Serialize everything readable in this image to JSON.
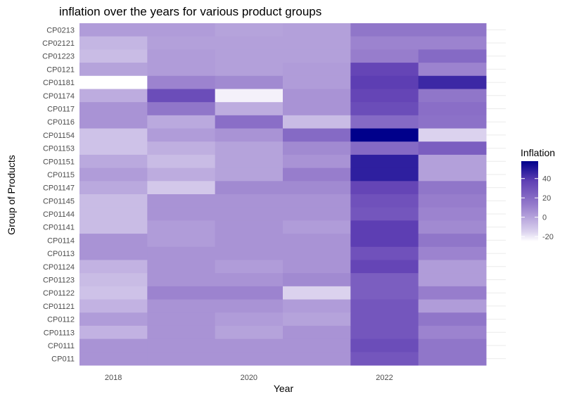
{
  "chart_data": {
    "type": "heatmap",
    "title": "inflation over the years for various product groups",
    "xlabel": "Year",
    "ylabel": "Group of Products",
    "x": [
      2018,
      2019,
      2020,
      2021,
      2022,
      2023
    ],
    "x_tick_labels": [
      "2018",
      "2020",
      "2022"
    ],
    "x_tick_values": [
      2018,
      2020,
      2022
    ],
    "y": [
      "CP0213",
      "CP02121",
      "CP01223",
      "CP0121",
      "CP01181",
      "CP01174",
      "CP0117",
      "CP0116",
      "CP01154",
      "CP01153",
      "CP01151",
      "CP0115",
      "CP01147",
      "CP01145",
      "CP01144",
      "CP01141",
      "CP0114",
      "CP0113",
      "CP01124",
      "CP01123",
      "CP01122",
      "CP01121",
      "CP0112",
      "CP01113",
      "CP0111",
      "CP011"
    ],
    "values": [
      [
        2,
        2,
        0,
        1,
        15,
        15
      ],
      [
        -6,
        1,
        1,
        1,
        10,
        10
      ],
      [
        -8,
        2,
        1,
        1,
        12,
        20
      ],
      [
        0,
        2,
        1,
        2,
        35,
        10
      ],
      [
        -25,
        10,
        8,
        2,
        38,
        45
      ],
      [
        -3,
        32,
        -22,
        5,
        35,
        15
      ],
      [
        5,
        15,
        -3,
        5,
        32,
        18
      ],
      [
        5,
        -2,
        18,
        -8,
        20,
        17
      ],
      [
        -10,
        2,
        5,
        20,
        58,
        -15
      ],
      [
        -10,
        -4,
        0,
        8,
        20,
        25
      ],
      [
        -2,
        -8,
        0,
        5,
        48,
        1
      ],
      [
        2,
        -3,
        0,
        12,
        48,
        1
      ],
      [
        -2,
        -12,
        8,
        8,
        35,
        15
      ],
      [
        -8,
        5,
        5,
        5,
        30,
        12
      ],
      [
        -8,
        5,
        5,
        5,
        28,
        10
      ],
      [
        -8,
        2,
        5,
        2,
        38,
        8
      ],
      [
        5,
        2,
        5,
        5,
        38,
        15
      ],
      [
        5,
        5,
        5,
        5,
        30,
        10
      ],
      [
        -5,
        5,
        2,
        5,
        35,
        2
      ],
      [
        -8,
        5,
        5,
        8,
        25,
        2
      ],
      [
        -10,
        10,
        10,
        -15,
        25,
        12
      ],
      [
        -5,
        5,
        5,
        2,
        28,
        2
      ],
      [
        2,
        5,
        2,
        0,
        28,
        15
      ],
      [
        -5,
        5,
        0,
        5,
        28,
        10
      ],
      [
        5,
        5,
        5,
        5,
        32,
        15
      ],
      [
        5,
        5,
        5,
        5,
        28,
        15
      ]
    ],
    "color_scale": {
      "low": "#ffffff",
      "high": "#00008b",
      "min": -25,
      "max": 58
    },
    "legend": {
      "title": "Inflation",
      "ticks": [
        {
          "value": 40,
          "label": "40"
        },
        {
          "value": 20,
          "label": "20"
        },
        {
          "value": 0,
          "label": "0"
        },
        {
          "value": -20,
          "label": "-20"
        }
      ],
      "placement": "right"
    },
    "grid": true
  }
}
